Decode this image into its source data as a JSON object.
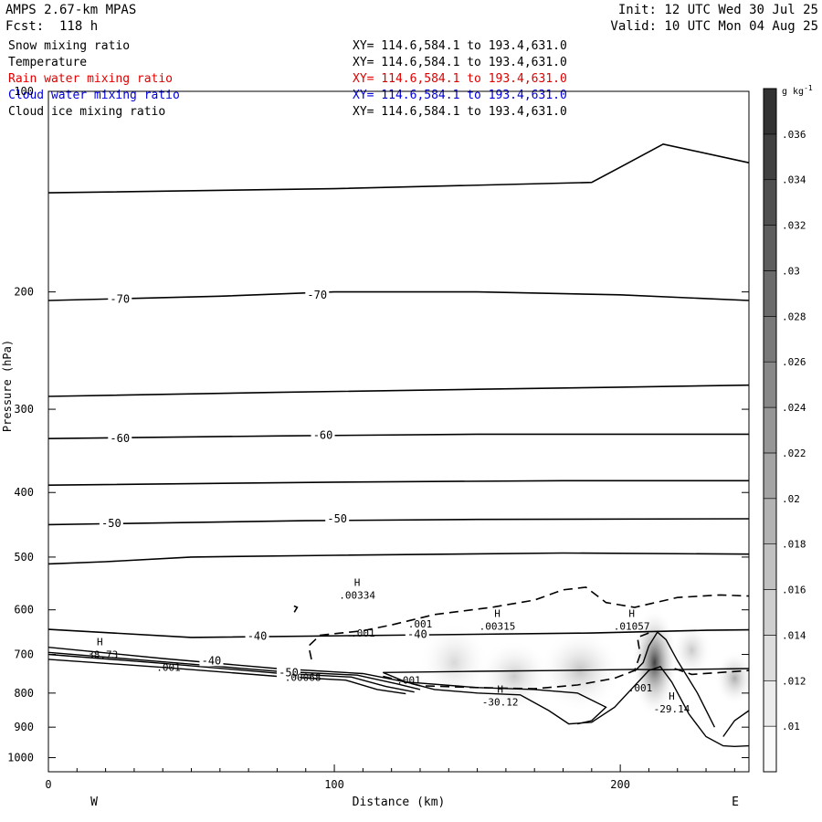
{
  "header": {
    "model": "AMPS 2.67-km MPAS",
    "forecast": "Fcst:  118 h",
    "init": "Init: 12 UTC Wed 30 Jul 25",
    "valid": "Valid: 10 UTC Mon 04 Aug 25"
  },
  "fields": [
    {
      "name": "Snow mixing ratio",
      "xy": "XY= 114.6,584.1 to 193.4,631.0",
      "color": "#000000"
    },
    {
      "name": "Temperature",
      "xy": "XY= 114.6,584.1 to 193.4,631.0",
      "color": "#000000"
    },
    {
      "name": "Rain water mixing ratio",
      "xy": "XY= 114.6,584.1 to 193.4,631.0",
      "color": "#e00000"
    },
    {
      "name": "Cloud water mixing ratio",
      "xy": "XY= 114.6,584.1 to 193.4,631.0",
      "color": "#0000e0"
    },
    {
      "name": "Cloud ice mixing ratio",
      "xy": "XY= 114.6,584.1 to 193.4,631.0",
      "color": "#000000"
    }
  ],
  "chart_data": {
    "type": "cross-section",
    "xlabel": "Distance (km)",
    "ylabel": "Pressure (hPa)",
    "x_ticks": [
      0,
      100,
      200
    ],
    "xlim": [
      0,
      245
    ],
    "y_ticks": [
      100,
      200,
      300,
      400,
      500,
      600,
      700,
      800,
      900,
      1000
    ],
    "ylim": [
      100,
      1050
    ],
    "y_scale": "log",
    "left_end": "W",
    "right_end": "E",
    "colorbar": {
      "unit_label": "g kg",
      "unit_exponent": "-1",
      "ticks": [
        ".01",
        ".012",
        ".014",
        ".016",
        ".018",
        ".02",
        ".022",
        ".024",
        ".026",
        ".028",
        ".03",
        ".032",
        ".034",
        ".036"
      ],
      "range": [
        0.009,
        0.038
      ]
    },
    "temperature_contour_labels": [
      {
        "text": "-70",
        "x": 25,
        "p": 205
      },
      {
        "text": "-70",
        "x": 94,
        "p": 202
      },
      {
        "text": "-60",
        "x": 25,
        "p": 332
      },
      {
        "text": "-60",
        "x": 96,
        "p": 328
      },
      {
        "text": "-50",
        "x": 22,
        "p": 445
      },
      {
        "text": "-50",
        "x": 101,
        "p": 438
      },
      {
        "text": "-40",
        "x": 73,
        "p": 657
      },
      {
        "text": "-40",
        "x": 129,
        "p": 653
      },
      {
        "text": "-40",
        "x": 57,
        "p": 715
      },
      {
        "text": "-50",
        "x": 84,
        "p": 745
      }
    ],
    "extrema_labels": [
      {
        "marker": "H",
        "value": ".00334",
        "x": 108,
        "p": 570
      },
      {
        "marker": "H",
        "value": ".00315",
        "x": 157,
        "p": 635
      },
      {
        "marker": "H",
        "value": ".01057",
        "x": 204,
        "p": 635
      },
      {
        "marker": "H",
        "value": "-38.73",
        "x": 18,
        "p": 700
      },
      {
        "marker": "H",
        "value": "-30.12",
        "x": 158,
        "p": 825
      },
      {
        "marker": "H",
        "value": "-29.14",
        "x": 218,
        "p": 845
      }
    ],
    "snow_contour_labels": [
      {
        "text": ".001",
        "x": 110,
        "p": 650
      },
      {
        "text": ".001",
        "x": 130,
        "p": 630
      },
      {
        "text": ".001",
        "x": 42,
        "p": 732
      },
      {
        "text": ".001",
        "x": 126,
        "p": 765
      },
      {
        "text": ".001",
        "x": 207,
        "p": 786
      },
      {
        "text": ".00068",
        "x": 89,
        "p": 757
      }
    ],
    "shading_blobs": [
      {
        "x": 142,
        "p": 720,
        "value": 0.014
      },
      {
        "x": 163,
        "p": 755,
        "value": 0.016
      },
      {
        "x": 186,
        "p": 740,
        "value": 0.017
      },
      {
        "x": 212,
        "p": 720,
        "value": 0.036
      },
      {
        "x": 225,
        "p": 690,
        "value": 0.016
      },
      {
        "x": 240,
        "p": 760,
        "value": 0.02
      }
    ]
  }
}
